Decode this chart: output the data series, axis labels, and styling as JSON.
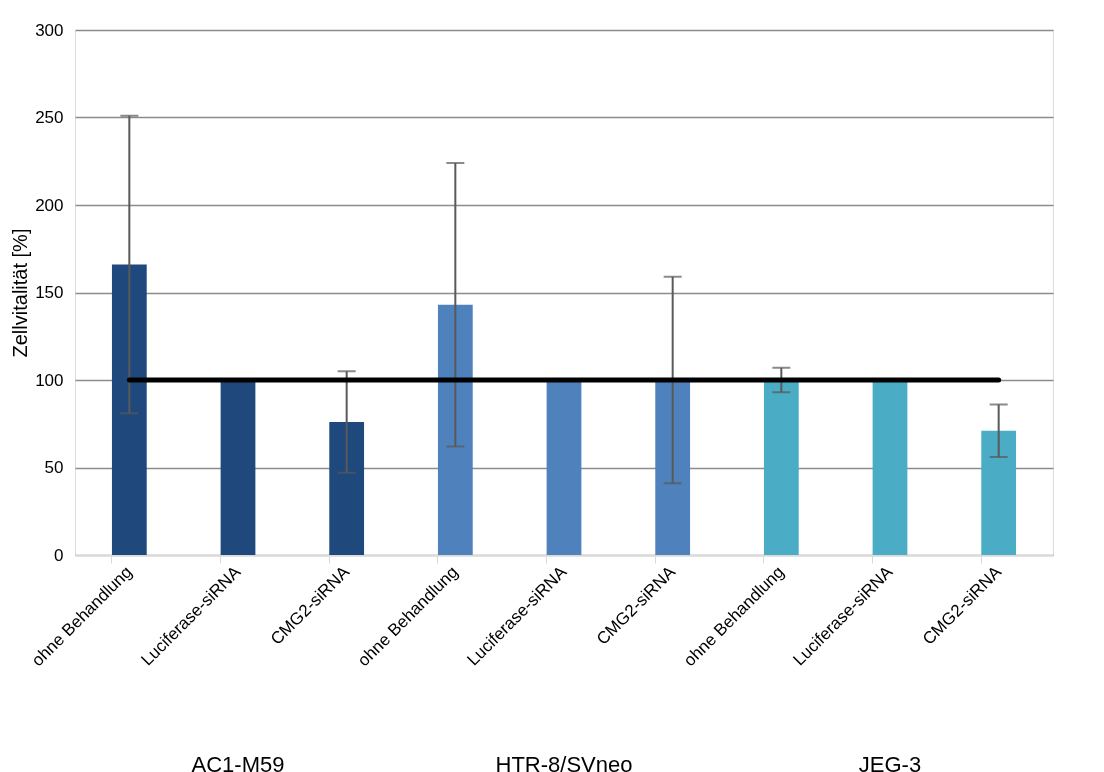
{
  "chart_data": {
    "type": "bar",
    "ylabel": "Zellvitalität [%]",
    "categories": [
      "ohne Behandlung",
      "Luciferase-siRNA",
      "CMG2-siRNA",
      "ohne Behandlung",
      "Luciferase-siRNA",
      "CMG2-siRNA",
      "ohne Behandlung",
      "Luciferase-siRNA",
      "CMG2-siRNA"
    ],
    "values": [
      166,
      100,
      76,
      143,
      100,
      100,
      100,
      100,
      71
    ],
    "errors": [
      85,
      null,
      29,
      81,
      null,
      59,
      7,
      null,
      15
    ],
    "colors": [
      "#1f497d",
      "#1f497d",
      "#1f497d",
      "#4f81bd",
      "#4f81bd",
      "#4f81bd",
      "#4bacc6",
      "#4bacc6",
      "#4bacc6"
    ],
    "ylim": [
      0,
      300
    ],
    "yticks": [
      0,
      50,
      100,
      150,
      200,
      250,
      300
    ],
    "grid": "y",
    "ref_lines": [
      {
        "axis": "y",
        "value": 100,
        "color": "#000000"
      }
    ],
    "annotations": [
      "AC1-M59",
      "HTR-8/SVneo",
      "JEG-3"
    ]
  }
}
